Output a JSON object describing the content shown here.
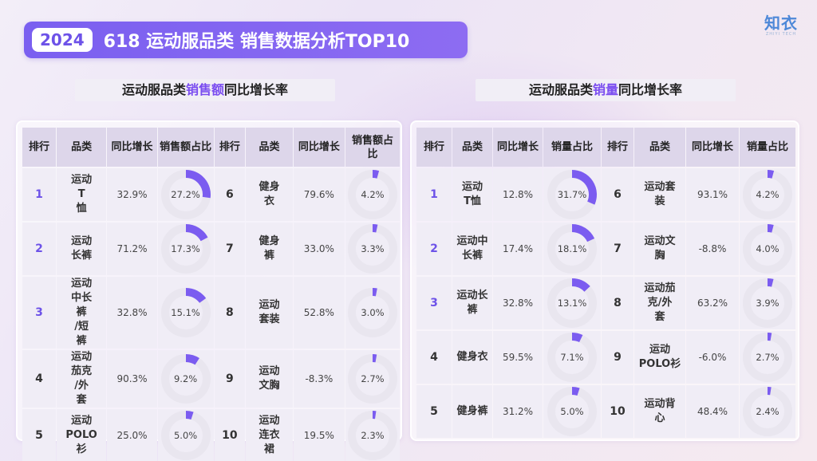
{
  "header": {
    "year": "2024",
    "title": "618 运动服品类 销售数据分析TOP10"
  },
  "logo": {
    "main": "知衣",
    "sub": "ZHIYI TECH"
  },
  "colors": {
    "accent": "#7a5ff0",
    "ring_track": "#e9e6ef",
    "ring_fill": "#7b5cf0"
  },
  "sales_amount": {
    "section_title_pre": "运动服品类",
    "section_title_hl": "销售额",
    "section_title_post": "同比增长率",
    "headers": [
      "排行",
      "品类",
      "同比增长",
      "销售额占比",
      "排行",
      "品类",
      "同比增长",
      "销售额占比"
    ],
    "rows": [
      {
        "rank": "1",
        "category": "运动T恤",
        "growth": "32.9%",
        "share": "27.2%",
        "share_value": 27.2
      },
      {
        "rank": "2",
        "category": "运动长裤",
        "growth": "71.2%",
        "share": "17.3%",
        "share_value": 17.3
      },
      {
        "rank": "3",
        "category": "运动中长裤/短裤",
        "growth": "32.8%",
        "share": "15.1%",
        "share_value": 15.1
      },
      {
        "rank": "4",
        "category": "运动茄克/外套",
        "growth": "90.3%",
        "share": "9.2%",
        "share_value": 9.2
      },
      {
        "rank": "5",
        "category": "运动POLO衫",
        "growth": "25.0%",
        "share": "5.0%",
        "share_value": 5.0
      },
      {
        "rank": "6",
        "category": "健身衣",
        "growth": "79.6%",
        "share": "4.2%",
        "share_value": 4.2
      },
      {
        "rank": "7",
        "category": "健身裤",
        "growth": "33.0%",
        "share": "3.3%",
        "share_value": 3.3
      },
      {
        "rank": "8",
        "category": "运动套装",
        "growth": "52.8%",
        "share": "3.0%",
        "share_value": 3.0
      },
      {
        "rank": "9",
        "category": "运动文胸",
        "growth": "-8.3%",
        "share": "2.7%",
        "share_value": 2.7
      },
      {
        "rank": "10",
        "category": "运动连衣裙",
        "growth": "19.5%",
        "share": "2.3%",
        "share_value": 2.3
      }
    ]
  },
  "sales_volume": {
    "section_title_pre": "运动服品类",
    "section_title_hl": "销量",
    "section_title_post": "同比增长率",
    "headers": [
      "排行",
      "品类",
      "同比增长",
      "销量占比",
      "排行",
      "品类",
      "同比增长",
      "销量占比"
    ],
    "rows": [
      {
        "rank": "1",
        "category": "运动T恤",
        "growth": "12.8%",
        "share": "31.7%",
        "share_value": 31.7
      },
      {
        "rank": "2",
        "category": "运动中长裤",
        "growth": "17.4%",
        "share": "18.1%",
        "share_value": 18.1
      },
      {
        "rank": "3",
        "category": "运动长裤",
        "growth": "32.8%",
        "share": "13.1%",
        "share_value": 13.1
      },
      {
        "rank": "4",
        "category": "健身衣",
        "growth": "59.5%",
        "share": "7.1%",
        "share_value": 7.1
      },
      {
        "rank": "5",
        "category": "健身裤",
        "growth": "31.2%",
        "share": "5.0%",
        "share_value": 5.0
      },
      {
        "rank": "6",
        "category": "运动套装",
        "growth": "93.1%",
        "share": "4.2%",
        "share_value": 4.2
      },
      {
        "rank": "7",
        "category": "运动文胸",
        "growth": "-8.8%",
        "share": "4.0%",
        "share_value": 4.0
      },
      {
        "rank": "8",
        "category": "运动茄克/外套",
        "growth": "63.2%",
        "share": "3.9%",
        "share_value": 3.9
      },
      {
        "rank": "9",
        "category": "运动POLO衫",
        "growth": "-6.0%",
        "share": "2.7%",
        "share_value": 2.7
      },
      {
        "rank": "10",
        "category": "运动背心",
        "growth": "48.4%",
        "share": "2.4%",
        "share_value": 2.4
      }
    ]
  }
}
